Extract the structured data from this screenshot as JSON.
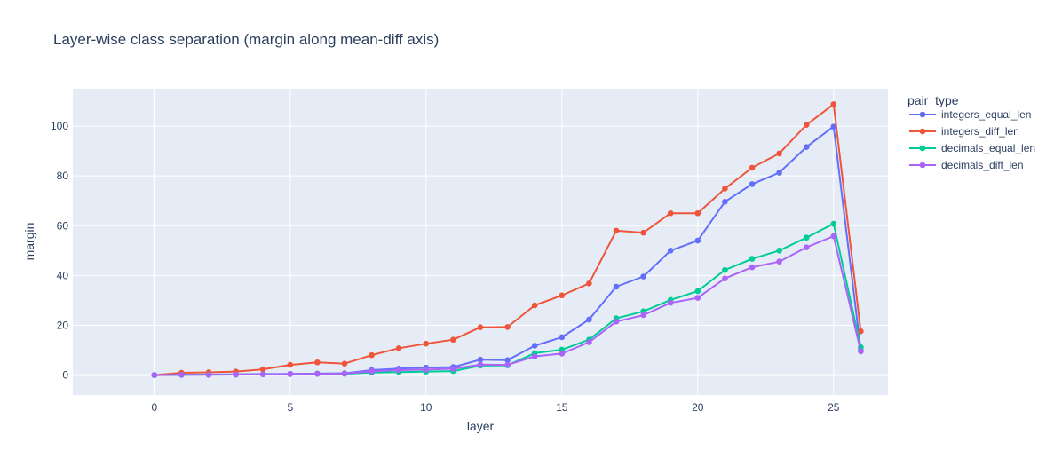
{
  "chart_data": {
    "type": "line",
    "title": "Layer-wise class separation (margin along mean-diff axis)",
    "xlabel": "layer",
    "ylabel": "margin",
    "xlim": [
      -3.0,
      27.0
    ],
    "ylim": [
      -8,
      115
    ],
    "xticks": [
      0,
      5,
      10,
      15,
      20,
      25
    ],
    "yticks": [
      0,
      20,
      40,
      60,
      80,
      100
    ],
    "grid": true,
    "legend": {
      "title": "pair_type",
      "placement": "right"
    },
    "x": [
      0,
      1,
      2,
      3,
      4,
      5,
      6,
      7,
      8,
      9,
      10,
      11,
      12,
      13,
      14,
      15,
      16,
      17,
      18,
      19,
      20,
      21,
      22,
      23,
      24,
      25,
      26
    ],
    "series": [
      {
        "name": "integers_equal_len",
        "color": "#636efa",
        "values": [
          0,
          0.2,
          0.2,
          0.3,
          0.4,
          0.5,
          0.6,
          0.7,
          2,
          2.6,
          3,
          3.2,
          6.2,
          6,
          11.8,
          15.2,
          22.3,
          35.5,
          39.6,
          50,
          54,
          69.6,
          76.7,
          81.3,
          91.6,
          99.8,
          10
        ]
      },
      {
        "name": "integers_diff_len",
        "color": "#ef553b",
        "values": [
          0,
          0.9,
          1.1,
          1.4,
          2.3,
          4.1,
          5.1,
          4.6,
          8,
          10.8,
          12.6,
          14.2,
          19.2,
          19.3,
          28,
          32,
          36.8,
          58,
          57.2,
          65,
          65,
          74.9,
          83.3,
          89,
          100.5,
          108.8,
          17.6
        ]
      },
      {
        "name": "decimals_equal_len",
        "color": "#00cc96",
        "values": [
          0,
          0.1,
          0.2,
          0.2,
          0.3,
          0.4,
          0.5,
          0.5,
          1,
          1.2,
          1.4,
          1.6,
          3.8,
          3.9,
          8.8,
          10.2,
          14.2,
          22.8,
          25.6,
          30.2,
          33.7,
          42.2,
          46.7,
          50,
          55.2,
          60.8,
          11.2
        ]
      },
      {
        "name": "decimals_diff_len",
        "color": "#ab63fa",
        "values": [
          0,
          0.1,
          0.1,
          0.2,
          0.3,
          0.4,
          0.5,
          0.6,
          1.5,
          2,
          2.2,
          2.5,
          4.2,
          4.1,
          7.5,
          8.6,
          13.2,
          21.5,
          24.1,
          29,
          31,
          38.8,
          43.3,
          45.6,
          51.3,
          55.8,
          9.5
        ]
      }
    ]
  }
}
